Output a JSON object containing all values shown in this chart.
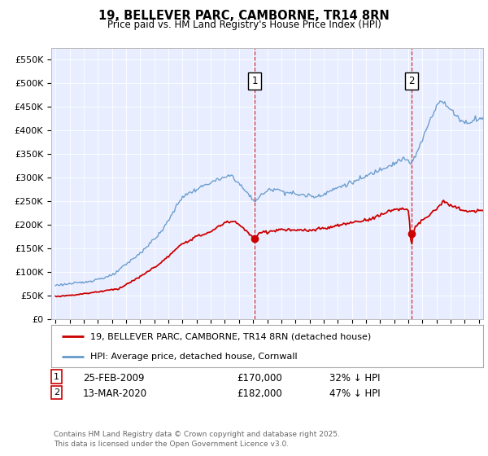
{
  "title": "19, BELLEVER PARC, CAMBORNE, TR14 8RN",
  "subtitle": "Price paid vs. HM Land Registry's House Price Index (HPI)",
  "legend_label_red": "19, BELLEVER PARC, CAMBORNE, TR14 8RN (detached house)",
  "legend_label_blue": "HPI: Average price, detached house, Cornwall",
  "marker1_date": "25-FEB-2009",
  "marker1_price": 170000,
  "marker1_pct": "32% ↓ HPI",
  "marker1_year": 2009.12,
  "marker2_date": "13-MAR-2020",
  "marker2_price": 182000,
  "marker2_pct": "47% ↓ HPI",
  "marker2_year": 2020.21,
  "ylim": [
    0,
    575000
  ],
  "xlim": [
    1994.7,
    2025.3
  ],
  "yticks": [
    0,
    50000,
    100000,
    150000,
    200000,
    250000,
    300000,
    350000,
    400000,
    450000,
    500000,
    550000
  ],
  "ytick_labels": [
    "£0",
    "£50K",
    "£100K",
    "£150K",
    "£200K",
    "£250K",
    "£300K",
    "£350K",
    "£400K",
    "£450K",
    "£500K",
    "£550K"
  ],
  "footer": "Contains HM Land Registry data © Crown copyright and database right 2025.\nThis data is licensed under the Open Government Licence v3.0.",
  "plot_bg": "#e8eeff",
  "red_color": "#cc0000",
  "blue_color": "#6699cc",
  "grid_color": "#ffffff",
  "marker_box_color": "#cc0000"
}
